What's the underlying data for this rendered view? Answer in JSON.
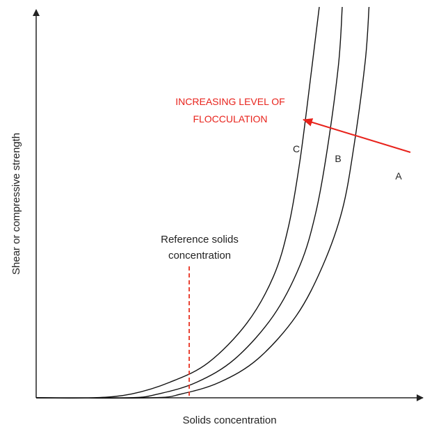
{
  "chart_data": {
    "type": "line",
    "xlabel": "Solids concentration",
    "ylabel": "Shear or compressive strength",
    "ticks": "none",
    "grid": false,
    "series": [
      {
        "name": "C",
        "x": [
          0,
          0.15,
          0.25,
          0.35,
          0.45,
          0.55,
          0.62,
          0.66,
          0.69,
          0.72,
          0.74
        ],
        "y": [
          0,
          0.0,
          0.01,
          0.04,
          0.09,
          0.19,
          0.31,
          0.44,
          0.61,
          0.84,
          1.0
        ]
      },
      {
        "name": "B",
        "x": [
          0,
          0.24,
          0.32,
          0.42,
          0.52,
          0.62,
          0.69,
          0.73,
          0.76,
          0.79,
          0.8
        ],
        "y": [
          0,
          0.0,
          0.01,
          0.04,
          0.1,
          0.21,
          0.34,
          0.47,
          0.63,
          0.85,
          1.0
        ]
      },
      {
        "name": "A",
        "x": [
          0,
          0.3,
          0.38,
          0.48,
          0.58,
          0.68,
          0.75,
          0.8,
          0.83,
          0.86,
          0.87
        ],
        "y": [
          0,
          0.0,
          0.01,
          0.04,
          0.1,
          0.21,
          0.34,
          0.48,
          0.64,
          0.86,
          1.0
        ]
      }
    ],
    "reference_x": 0.4,
    "annotations": {
      "reference_line1": "Reference solids",
      "reference_line2": "concentration",
      "flocculation_line1": "INCREASING LEVEL OF",
      "flocculation_line2": "FLOCCULATION"
    },
    "colors": {
      "curves": "#111111",
      "axes": "#222222",
      "reference": "#e8301f",
      "flocculation": "#e8221b"
    }
  }
}
